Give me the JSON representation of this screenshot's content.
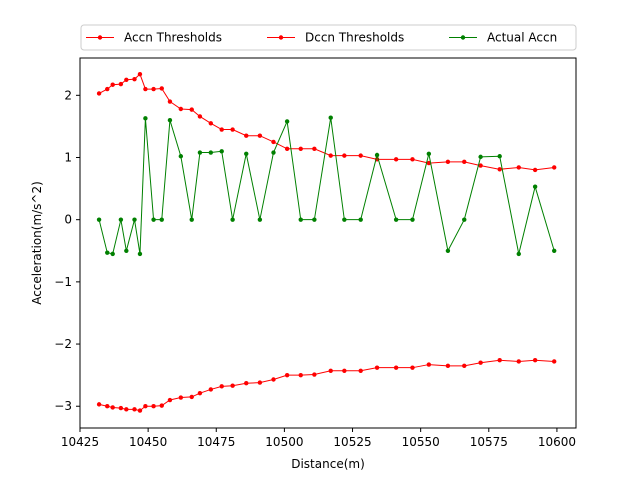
{
  "chart_data": {
    "type": "line",
    "title": "",
    "xlabel": "Distance(m)",
    "ylabel": "Acceleration(m/s^2)",
    "xlim": [
      10425,
      10607
    ],
    "ylim": [
      -3.35,
      2.6
    ],
    "xticks": [
      10425,
      10450,
      10475,
      10500,
      10525,
      10550,
      10575,
      10600
    ],
    "yticks": [
      -3,
      -2,
      -1,
      0,
      1,
      2
    ],
    "xtick_labels": [
      "10425",
      "10450",
      "10475",
      "10500",
      "10525",
      "10550",
      "10575",
      "10600"
    ],
    "ytick_labels": [
      "−3",
      "−2",
      "−1",
      "0",
      "1",
      "2"
    ],
    "grid": false,
    "legend": {
      "placement": "top-center",
      "columns": 3
    },
    "series": [
      {
        "name": "Accn Thresholds",
        "color": "#ff0000",
        "x": [
          10432,
          10435,
          10437,
          10440,
          10442,
          10445,
          10447,
          10449,
          10452,
          10455,
          10458,
          10462,
          10466,
          10469,
          10473,
          10477,
          10481,
          10486,
          10491,
          10496,
          10501,
          10506,
          10511,
          10517,
          10522,
          10528,
          10534,
          10541,
          10547,
          10553,
          10560,
          10566,
          10572,
          10579,
          10586,
          10592,
          10599
        ],
        "y": [
          2.03,
          2.1,
          2.17,
          2.18,
          2.25,
          2.26,
          2.34,
          2.1,
          2.1,
          2.11,
          1.9,
          1.78,
          1.77,
          1.66,
          1.55,
          1.45,
          1.45,
          1.35,
          1.35,
          1.25,
          1.14,
          1.14,
          1.14,
          1.03,
          1.03,
          1.03,
          0.97,
          0.97,
          0.97,
          0.91,
          0.93,
          0.93,
          0.87,
          0.81,
          0.84,
          0.8,
          0.84
        ]
      },
      {
        "name": "Dccn Thresholds",
        "color": "#ff0000",
        "x": [
          10432,
          10435,
          10437,
          10440,
          10442,
          10445,
          10447,
          10449,
          10452,
          10455,
          10458,
          10462,
          10466,
          10469,
          10473,
          10477,
          10481,
          10486,
          10491,
          10496,
          10501,
          10506,
          10511,
          10517,
          10522,
          10528,
          10534,
          10541,
          10547,
          10553,
          10560,
          10566,
          10572,
          10579,
          10586,
          10592,
          10599
        ],
        "y": [
          -2.97,
          -3.0,
          -3.02,
          -3.03,
          -3.05,
          -3.05,
          -3.07,
          -3.0,
          -3.0,
          -2.99,
          -2.9,
          -2.86,
          -2.85,
          -2.79,
          -2.73,
          -2.68,
          -2.67,
          -2.63,
          -2.62,
          -2.57,
          -2.5,
          -2.5,
          -2.49,
          -2.43,
          -2.43,
          -2.43,
          -2.38,
          -2.38,
          -2.38,
          -2.33,
          -2.35,
          -2.35,
          -2.3,
          -2.26,
          -2.28,
          -2.26,
          -2.28
        ]
      },
      {
        "name": "Actual Accn",
        "color": "#008000",
        "x": [
          10432,
          10435,
          10437,
          10440,
          10442,
          10445,
          10447,
          10449,
          10452,
          10455,
          10458,
          10462,
          10466,
          10469,
          10473,
          10477,
          10481,
          10486,
          10491,
          10496,
          10501,
          10506,
          10511,
          10517,
          10522,
          10528,
          10534,
          10541,
          10547,
          10553,
          10560,
          10566,
          10572,
          10579,
          10586,
          10592,
          10599
        ],
        "y": [
          0.0,
          -0.53,
          -0.55,
          0.0,
          -0.5,
          0.0,
          -0.55,
          1.63,
          0.0,
          0.0,
          1.6,
          1.02,
          0.0,
          1.08,
          1.08,
          1.1,
          0.0,
          1.06,
          0.0,
          1.08,
          1.58,
          0.0,
          0.0,
          1.64,
          0.0,
          0.0,
          1.04,
          0.0,
          0.0,
          1.06,
          -0.5,
          0.0,
          1.01,
          1.02,
          -0.55,
          0.53,
          -0.5
        ]
      }
    ]
  }
}
